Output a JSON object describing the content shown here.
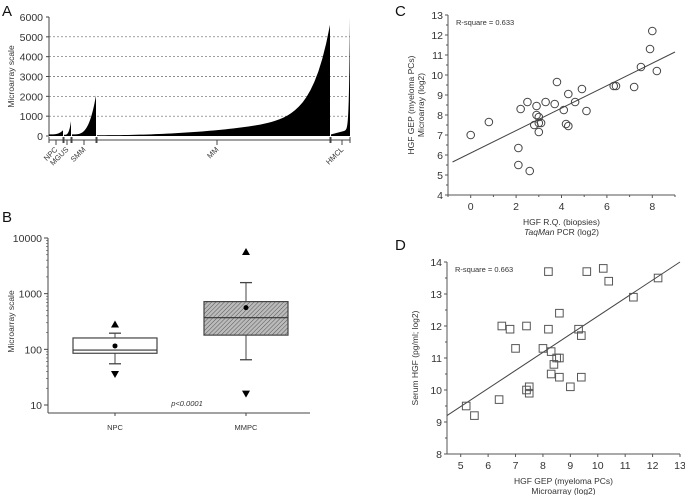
{
  "chart_data": [
    {
      "panel": "A",
      "type": "bar",
      "ylabel": "Microarray scale",
      "ylim": [
        0,
        6000
      ],
      "yticks": [
        0,
        1000,
        2000,
        3000,
        4000,
        5000,
        6000
      ],
      "grid": "dashed-horizontal",
      "groups": [
        {
          "name": "NPC",
          "n": 8,
          "min": 80,
          "max": 290
        },
        {
          "name": "MGUS",
          "n": 6,
          "min": 60,
          "max": 750
        },
        {
          "name": "SMM",
          "n": 15,
          "min": 80,
          "max": 2050
        },
        {
          "name": "MM",
          "n": 230,
          "min": 40,
          "max": 5600
        },
        {
          "name": "HMCL",
          "n": 20,
          "min": 80,
          "max": 6000
        }
      ]
    },
    {
      "panel": "B",
      "type": "box",
      "ylabel": "Microarray scale",
      "yscale": "log",
      "ylim": [
        10,
        10000
      ],
      "yticks": [
        10,
        100,
        1000,
        10000
      ],
      "annotation": "p<0.0001",
      "categories": [
        "NPC",
        "MMPC"
      ],
      "boxes": [
        {
          "name": "NPC",
          "q1": 85,
          "median": 97,
          "q3": 160,
          "whisker_low": 55,
          "whisker_high": 195,
          "mean": 115,
          "max": 280,
          "min": 36,
          "hatched": false
        },
        {
          "name": "MMPC",
          "q1": 180,
          "median": 370,
          "q3": 720,
          "whisker_low": 65,
          "whisker_high": 1580,
          "mean": 560,
          "max": 5600,
          "min": 16,
          "hatched": true
        }
      ]
    },
    {
      "panel": "C",
      "type": "scatter",
      "annotation": "R-square = 0.633",
      "xlabel": [
        "HGF R.Q. (biopsies)",
        "TaqMan PCR (log2)"
      ],
      "ylabel": [
        "HGF GEP (myeloma PCs)",
        "Microarray (log2)"
      ],
      "xlim": [
        -1,
        9
      ],
      "ylim": [
        4,
        13
      ],
      "xticks": [
        0,
        2,
        4,
        6,
        8
      ],
      "yticks": [
        4,
        5,
        6,
        7,
        8,
        9,
        10,
        11,
        12,
        13
      ],
      "fit": {
        "x": [
          -0.8,
          9.0
        ],
        "y": [
          5.65,
          11.15
        ]
      },
      "points": [
        [
          0.0,
          7.0
        ],
        [
          0.8,
          7.65
        ],
        [
          2.1,
          6.35
        ],
        [
          2.1,
          5.5
        ],
        [
          2.6,
          5.2
        ],
        [
          2.2,
          8.3
        ],
        [
          2.5,
          8.65
        ],
        [
          2.9,
          8.45
        ],
        [
          2.9,
          8.0
        ],
        [
          3.0,
          7.9
        ],
        [
          2.8,
          7.5
        ],
        [
          3.0,
          7.6
        ],
        [
          3.1,
          7.6
        ],
        [
          3.0,
          7.15
        ],
        [
          3.3,
          8.65
        ],
        [
          3.7,
          8.55
        ],
        [
          3.8,
          9.65
        ],
        [
          4.1,
          8.25
        ],
        [
          4.3,
          9.05
        ],
        [
          4.2,
          7.55
        ],
        [
          4.3,
          7.45
        ],
        [
          4.6,
          8.65
        ],
        [
          4.9,
          9.3
        ],
        [
          5.1,
          8.2
        ],
        [
          6.3,
          9.45
        ],
        [
          6.4,
          9.45
        ],
        [
          7.2,
          9.4
        ],
        [
          7.5,
          10.4
        ],
        [
          7.9,
          11.3
        ],
        [
          8.0,
          12.2
        ],
        [
          8.2,
          10.2
        ]
      ]
    },
    {
      "panel": "D",
      "type": "scatter",
      "annotation": "R-square = 0.663",
      "xlabel": [
        "HGF GEP (myeloma PCs)",
        "Microarray (log2)"
      ],
      "ylabel": [
        "Serum HGF (pg/ml; log2)"
      ],
      "xlim": [
        4.5,
        13
      ],
      "ylim": [
        8,
        14
      ],
      "xticks": [
        5,
        6,
        7,
        8,
        9,
        10,
        11,
        12,
        13
      ],
      "yticks": [
        8,
        9,
        10,
        11,
        12,
        13,
        14
      ],
      "fit": {
        "x": [
          4.5,
          13.0
        ],
        "y": [
          9.2,
          14.0
        ]
      },
      "points": [
        [
          5.2,
          9.5
        ],
        [
          5.5,
          9.2
        ],
        [
          6.4,
          9.7
        ],
        [
          6.5,
          12.0
        ],
        [
          6.8,
          11.9
        ],
        [
          7.0,
          11.3
        ],
        [
          7.4,
          12.0
        ],
        [
          7.4,
          10.0
        ],
        [
          7.5,
          9.9
        ],
        [
          7.5,
          10.1
        ],
        [
          8.0,
          11.3
        ],
        [
          8.2,
          13.7
        ],
        [
          8.2,
          11.9
        ],
        [
          8.3,
          11.2
        ],
        [
          8.3,
          10.5
        ],
        [
          8.4,
          10.8
        ],
        [
          8.5,
          11.0
        ],
        [
          8.6,
          11.0
        ],
        [
          8.6,
          10.4
        ],
        [
          8.6,
          12.4
        ],
        [
          9.0,
          10.1
        ],
        [
          9.3,
          11.9
        ],
        [
          9.4,
          11.7
        ],
        [
          9.4,
          10.4
        ],
        [
          9.6,
          13.7
        ],
        [
          10.2,
          13.8
        ],
        [
          10.4,
          13.4
        ],
        [
          11.3,
          12.9
        ],
        [
          12.2,
          13.5
        ]
      ]
    }
  ],
  "labels": {
    "panel_a": "A",
    "panel_b": "B",
    "panel_c": "C",
    "panel_d": "D"
  }
}
